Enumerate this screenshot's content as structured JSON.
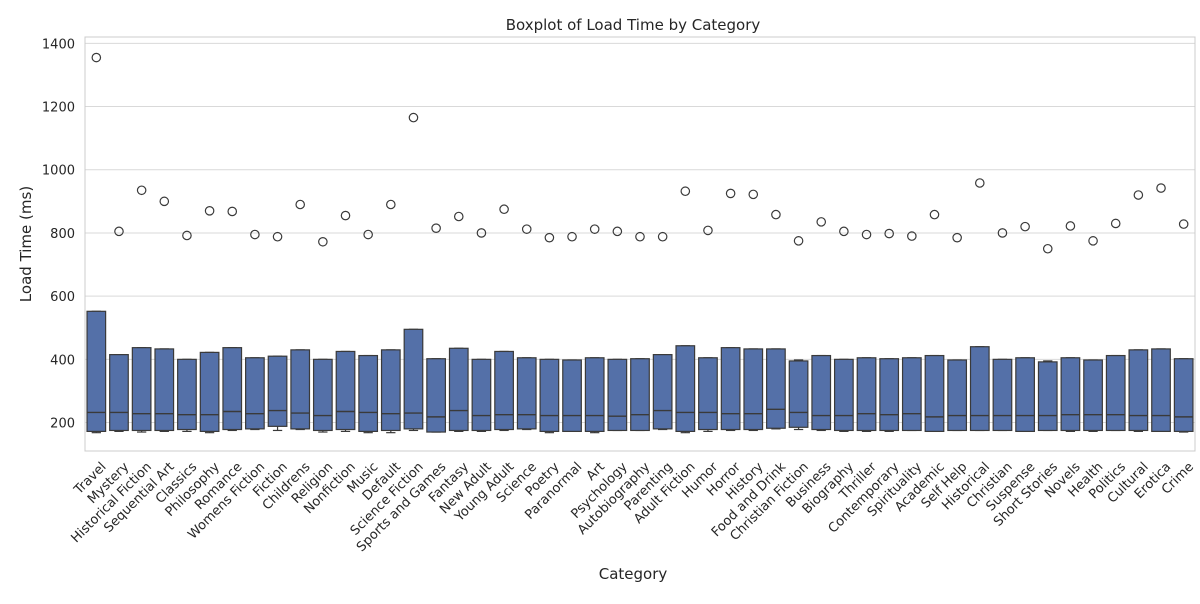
{
  "chart_data": {
    "type": "box",
    "title": "Boxplot of Load Time by Category",
    "xlabel": "Category",
    "ylabel": "Load Time (ms)",
    "ylim": [
      110,
      1420
    ],
    "yticks": [
      200,
      400,
      600,
      800,
      1000,
      1200,
      1400
    ],
    "grid": true,
    "box_color": "#5470a8",
    "edge_color": "#3a3a3a",
    "grid_color": "#d9d9d9",
    "axes_edge_color": "#cccccc",
    "categories": [
      "Travel",
      "Mystery",
      "Historical Fiction",
      "Sequential Art",
      "Classics",
      "Philosophy",
      "Romance",
      "Womens Fiction",
      "Fiction",
      "Childrens",
      "Religion",
      "Nonfiction",
      "Music",
      "Default",
      "Science Fiction",
      "Sports and Games",
      "Fantasy",
      "New Adult",
      "Young Adult",
      "Science",
      "Poetry",
      "Paranormal",
      "Art",
      "Psychology",
      "Autobiography",
      "Parenting",
      "Adult Fiction",
      "Humor",
      "Horror",
      "History",
      "Food and Drink",
      "Christian Fiction",
      "Business",
      "Biography",
      "Thriller",
      "Contemporary",
      "Spirituality",
      "Academic",
      "Self Help",
      "Historical",
      "Christian",
      "Suspense",
      "Short Stories",
      "Novels",
      "Health",
      "Politics",
      "Cultural",
      "Erotica",
      "Crime"
    ],
    "boxes": [
      {
        "q1": 172,
        "median": 232,
        "q3": 552,
        "whisker_low": 168,
        "whisker_high": 552,
        "outliers": [
          1355
        ]
      },
      {
        "q1": 175,
        "median": 232,
        "q3": 415,
        "whisker_low": 172,
        "whisker_high": 415,
        "outliers": [
          805
        ]
      },
      {
        "q1": 175,
        "median": 228,
        "q3": 437,
        "whisker_low": 170,
        "whisker_high": 437,
        "outliers": [
          935
        ]
      },
      {
        "q1": 175,
        "median": 228,
        "q3": 433,
        "whisker_low": 172,
        "whisker_high": 433,
        "outliers": [
          900
        ]
      },
      {
        "q1": 178,
        "median": 225,
        "q3": 400,
        "whisker_low": 172,
        "whisker_high": 400,
        "outliers": [
          792
        ]
      },
      {
        "q1": 172,
        "median": 225,
        "q3": 422,
        "whisker_low": 168,
        "whisker_high": 422,
        "outliers": [
          870
        ]
      },
      {
        "q1": 178,
        "median": 235,
        "q3": 437,
        "whisker_low": 175,
        "whisker_high": 437,
        "outliers": [
          868
        ]
      },
      {
        "q1": 180,
        "median": 228,
        "q3": 405,
        "whisker_low": 178,
        "whisker_high": 405,
        "outliers": [
          795
        ]
      },
      {
        "q1": 188,
        "median": 238,
        "q3": 410,
        "whisker_low": 175,
        "whisker_high": 410,
        "outliers": [
          788
        ]
      },
      {
        "q1": 180,
        "median": 230,
        "q3": 430,
        "whisker_low": 178,
        "whisker_high": 430,
        "outliers": [
          890
        ]
      },
      {
        "q1": 175,
        "median": 222,
        "q3": 400,
        "whisker_low": 170,
        "whisker_high": 400,
        "outliers": [
          772
        ]
      },
      {
        "q1": 178,
        "median": 235,
        "q3": 425,
        "whisker_low": 172,
        "whisker_high": 425,
        "outliers": [
          855
        ]
      },
      {
        "q1": 172,
        "median": 232,
        "q3": 412,
        "whisker_low": 168,
        "whisker_high": 412,
        "outliers": [
          795
        ]
      },
      {
        "q1": 175,
        "median": 228,
        "q3": 430,
        "whisker_low": 168,
        "whisker_high": 430,
        "outliers": [
          890
        ]
      },
      {
        "q1": 180,
        "median": 230,
        "q3": 495,
        "whisker_low": 175,
        "whisker_high": 495,
        "outliers": [
          1165
        ]
      },
      {
        "q1": 170,
        "median": 218,
        "q3": 402,
        "whisker_low": 170,
        "whisker_high": 402,
        "outliers": [
          815
        ]
      },
      {
        "q1": 175,
        "median": 238,
        "q3": 435,
        "whisker_low": 172,
        "whisker_high": 435,
        "outliers": [
          852
        ]
      },
      {
        "q1": 175,
        "median": 222,
        "q3": 400,
        "whisker_low": 172,
        "whisker_high": 400,
        "outliers": [
          800
        ]
      },
      {
        "q1": 178,
        "median": 225,
        "q3": 425,
        "whisker_low": 175,
        "whisker_high": 425,
        "outliers": [
          875
        ]
      },
      {
        "q1": 180,
        "median": 225,
        "q3": 405,
        "whisker_low": 178,
        "whisker_high": 405,
        "outliers": [
          812
        ]
      },
      {
        "q1": 172,
        "median": 222,
        "q3": 400,
        "whisker_low": 168,
        "whisker_high": 400,
        "outliers": [
          785
        ]
      },
      {
        "q1": 172,
        "median": 222,
        "q3": 398,
        "whisker_low": 172,
        "whisker_high": 398,
        "outliers": [
          788
        ]
      },
      {
        "q1": 172,
        "median": 222,
        "q3": 405,
        "whisker_low": 168,
        "whisker_high": 405,
        "outliers": [
          812
        ]
      },
      {
        "q1": 175,
        "median": 220,
        "q3": 400,
        "whisker_low": 175,
        "whisker_high": 400,
        "outliers": [
          805
        ]
      },
      {
        "q1": 175,
        "median": 225,
        "q3": 402,
        "whisker_low": 175,
        "whisker_high": 402,
        "outliers": [
          788
        ]
      },
      {
        "q1": 180,
        "median": 238,
        "q3": 415,
        "whisker_low": 178,
        "whisker_high": 415,
        "outliers": [
          788
        ]
      },
      {
        "q1": 172,
        "median": 232,
        "q3": 443,
        "whisker_low": 168,
        "whisker_high": 443,
        "outliers": [
          932
        ]
      },
      {
        "q1": 178,
        "median": 232,
        "q3": 405,
        "whisker_low": 172,
        "whisker_high": 405,
        "outliers": [
          808
        ]
      },
      {
        "q1": 178,
        "median": 228,
        "q3": 437,
        "whisker_low": 175,
        "whisker_high": 437,
        "outliers": [
          925
        ]
      },
      {
        "q1": 178,
        "median": 228,
        "q3": 433,
        "whisker_low": 175,
        "whisker_high": 433,
        "outliers": [
          922
        ]
      },
      {
        "q1": 182,
        "median": 242,
        "q3": 433,
        "whisker_low": 180,
        "whisker_high": 433,
        "outliers": [
          858
        ]
      },
      {
        "q1": 185,
        "median": 232,
        "q3": 395,
        "whisker_low": 178,
        "whisker_high": 398,
        "outliers": [
          775
        ]
      },
      {
        "q1": 178,
        "median": 222,
        "q3": 412,
        "whisker_low": 175,
        "whisker_high": 412,
        "outliers": [
          835
        ]
      },
      {
        "q1": 175,
        "median": 222,
        "q3": 400,
        "whisker_low": 172,
        "whisker_high": 400,
        "outliers": [
          805
        ]
      },
      {
        "q1": 175,
        "median": 228,
        "q3": 405,
        "whisker_low": 172,
        "whisker_high": 405,
        "outliers": [
          795
        ]
      },
      {
        "q1": 175,
        "median": 225,
        "q3": 402,
        "whisker_low": 172,
        "whisker_high": 402,
        "outliers": [
          798
        ]
      },
      {
        "q1": 175,
        "median": 228,
        "q3": 405,
        "whisker_low": 175,
        "whisker_high": 405,
        "outliers": [
          790
        ]
      },
      {
        "q1": 172,
        "median": 218,
        "q3": 412,
        "whisker_low": 172,
        "whisker_high": 412,
        "outliers": [
          858
        ]
      },
      {
        "q1": 175,
        "median": 222,
        "q3": 398,
        "whisker_low": 175,
        "whisker_high": 398,
        "outliers": [
          785
        ]
      },
      {
        "q1": 175,
        "median": 222,
        "q3": 440,
        "whisker_low": 175,
        "whisker_high": 440,
        "outliers": [
          958
        ]
      },
      {
        "q1": 175,
        "median": 222,
        "q3": 400,
        "whisker_low": 175,
        "whisker_high": 400,
        "outliers": [
          800
        ]
      },
      {
        "q1": 172,
        "median": 222,
        "q3": 405,
        "whisker_low": 172,
        "whisker_high": 405,
        "outliers": [
          820
        ]
      },
      {
        "q1": 175,
        "median": 222,
        "q3": 392,
        "whisker_low": 175,
        "whisker_high": 395,
        "outliers": [
          750
        ]
      },
      {
        "q1": 175,
        "median": 225,
        "q3": 405,
        "whisker_low": 172,
        "whisker_high": 405,
        "outliers": [
          822
        ]
      },
      {
        "q1": 175,
        "median": 225,
        "q3": 398,
        "whisker_low": 172,
        "whisker_high": 398,
        "outliers": [
          775
        ]
      },
      {
        "q1": 175,
        "median": 225,
        "q3": 412,
        "whisker_low": 175,
        "whisker_high": 412,
        "outliers": [
          830
        ]
      },
      {
        "q1": 175,
        "median": 222,
        "q3": 430,
        "whisker_low": 172,
        "whisker_high": 430,
        "outliers": [
          920
        ]
      },
      {
        "q1": 172,
        "median": 222,
        "q3": 433,
        "whisker_low": 172,
        "whisker_high": 433,
        "outliers": [
          942
        ]
      },
      {
        "q1": 172,
        "median": 218,
        "q3": 402,
        "whisker_low": 170,
        "whisker_high": 402,
        "outliers": [
          828
        ]
      }
    ]
  }
}
